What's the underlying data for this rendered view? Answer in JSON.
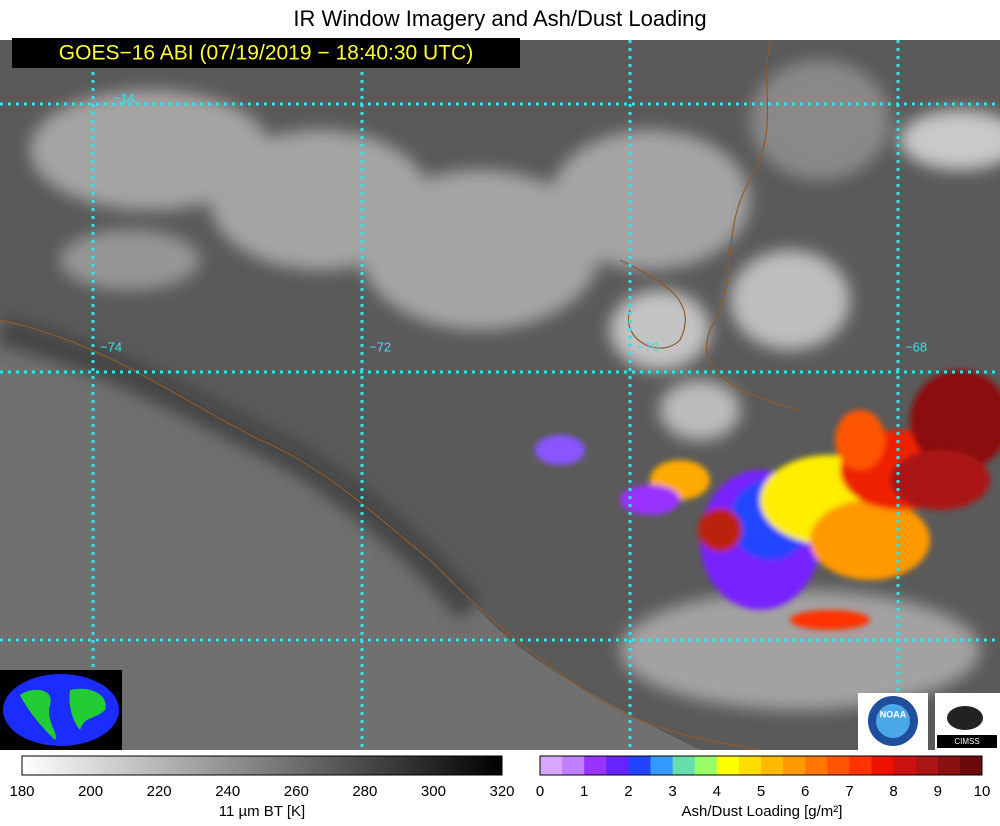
{
  "title": "IR Window Imagery and Ash/Dust Loading",
  "subtitle": "GOES−16 ABI (07/19/2019 − 18:40:30 UTC)",
  "grid_labels": {
    "lat": [
      "−14"
    ],
    "lon": [
      "−74",
      "−72",
      "−70",
      "−68"
    ]
  },
  "colorbars": [
    {
      "label": "11 µm BT [K]",
      "ticks": [
        180,
        200,
        220,
        240,
        260,
        280,
        300,
        320
      ]
    },
    {
      "label": "Ash/Dust Loading [g/m²]",
      "ticks": [
        0,
        1,
        2,
        3,
        4,
        5,
        6,
        7,
        8,
        9,
        10
      ]
    }
  ],
  "logos": [
    "NOAA",
    "CIMSS"
  ]
}
